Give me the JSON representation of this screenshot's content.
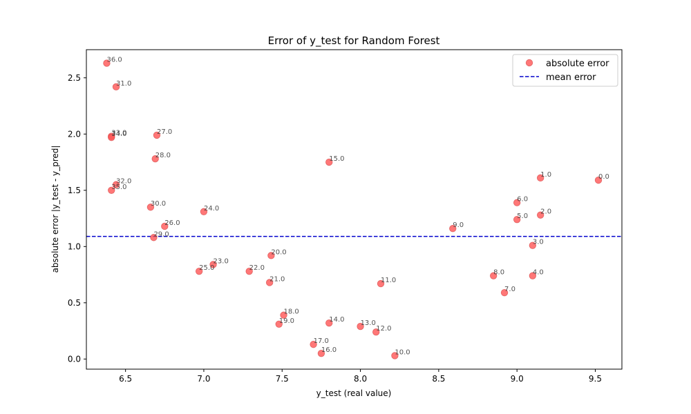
{
  "chart_data": {
    "type": "scatter",
    "title": "Error of y_test for Random Forest",
    "xlabel": "y_test (real value)",
    "ylabel": "absolute error |y_test - y_pred|",
    "xlim": [
      6.25,
      9.67
    ],
    "ylim": [
      -0.09,
      2.75
    ],
    "x_ticks": [
      6.5,
      7.0,
      7.5,
      8.0,
      8.5,
      9.0,
      9.5
    ],
    "x_tick_labels": [
      "6.5",
      "7.0",
      "7.5",
      "8.0",
      "8.5",
      "9.0",
      "9.5"
    ],
    "y_ticks": [
      0.0,
      0.5,
      1.0,
      1.5,
      2.0,
      2.5
    ],
    "y_tick_labels": [
      "0.0",
      "0.5",
      "1.0",
      "1.5",
      "2.0",
      "2.5"
    ],
    "grid": false,
    "legend_position": "top-right",
    "mean_error": 1.09,
    "colors": {
      "points": "#ff5555",
      "points_edge": "#cc3333",
      "mean_line": "#0000cc"
    },
    "series": [
      {
        "name": "absolute error",
        "points": [
          {
            "label": "0.0",
            "x": 9.52,
            "y": 1.59
          },
          {
            "label": "1.0",
            "x": 9.15,
            "y": 1.61
          },
          {
            "label": "2.0",
            "x": 9.15,
            "y": 1.28
          },
          {
            "label": "3.0",
            "x": 9.1,
            "y": 1.01
          },
          {
            "label": "4.0",
            "x": 9.1,
            "y": 0.74
          },
          {
            "label": "5.0",
            "x": 9.0,
            "y": 1.24
          },
          {
            "label": "6.0",
            "x": 9.0,
            "y": 1.39
          },
          {
            "label": "7.0",
            "x": 8.92,
            "y": 0.59
          },
          {
            "label": "8.0",
            "x": 8.85,
            "y": 0.74
          },
          {
            "label": "9.0",
            "x": 8.59,
            "y": 1.16
          },
          {
            "label": "10.0",
            "x": 8.22,
            "y": 0.03
          },
          {
            "label": "11.0",
            "x": 8.13,
            "y": 0.67
          },
          {
            "label": "12.0",
            "x": 8.1,
            "y": 0.24
          },
          {
            "label": "13.0",
            "x": 8.0,
            "y": 0.29
          },
          {
            "label": "14.0",
            "x": 7.8,
            "y": 0.32
          },
          {
            "label": "15.0",
            "x": 7.8,
            "y": 1.75
          },
          {
            "label": "16.0",
            "x": 7.75,
            "y": 0.05
          },
          {
            "label": "17.0",
            "x": 7.7,
            "y": 0.13
          },
          {
            "label": "18.0",
            "x": 7.51,
            "y": 0.39
          },
          {
            "label": "19.0",
            "x": 7.48,
            "y": 0.31
          },
          {
            "label": "20.0",
            "x": 7.43,
            "y": 0.92
          },
          {
            "label": "21.0",
            "x": 7.42,
            "y": 0.68
          },
          {
            "label": "22.0",
            "x": 7.29,
            "y": 0.78
          },
          {
            "label": "23.0",
            "x": 7.06,
            "y": 0.84
          },
          {
            "label": "24.0",
            "x": 7.0,
            "y": 1.31
          },
          {
            "label": "25.0",
            "x": 6.97,
            "y": 0.78
          },
          {
            "label": "26.0",
            "x": 6.75,
            "y": 1.18
          },
          {
            "label": "27.0",
            "x": 6.7,
            "y": 1.99
          },
          {
            "label": "28.0",
            "x": 6.69,
            "y": 1.78
          },
          {
            "label": "29.0",
            "x": 6.68,
            "y": 1.08
          },
          {
            "label": "30.0",
            "x": 6.66,
            "y": 1.35
          },
          {
            "label": "31.0",
            "x": 6.44,
            "y": 2.42
          },
          {
            "label": "32.0",
            "x": 6.44,
            "y": 1.55
          },
          {
            "label": "33.0",
            "x": 6.41,
            "y": 1.98
          },
          {
            "label": "34.0",
            "x": 6.41,
            "y": 1.97
          },
          {
            "label": "35.0",
            "x": 6.41,
            "y": 1.5
          },
          {
            "label": "36.0",
            "x": 6.38,
            "y": 2.63
          }
        ]
      },
      {
        "name": "mean error",
        "style": "dashed"
      }
    ]
  }
}
